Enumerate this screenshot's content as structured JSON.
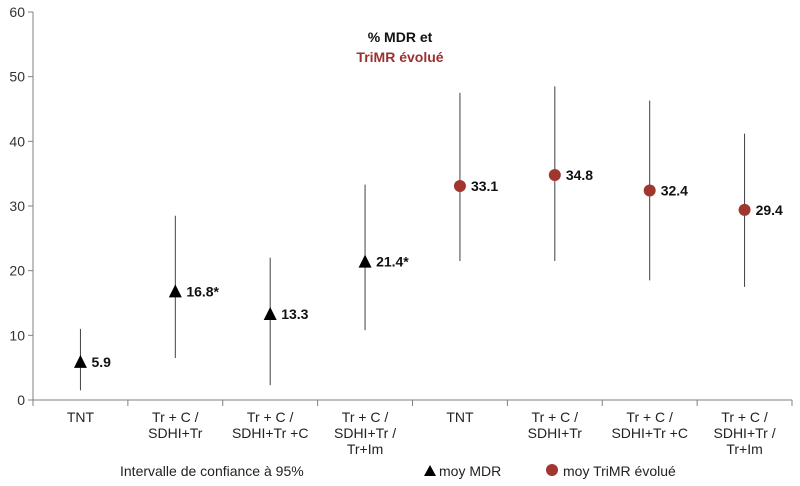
{
  "chart_data": {
    "type": "scatter",
    "title_line1": "% MDR et",
    "title_line2": "TriMR évolué",
    "note": "Intervalle de confiance à 95%",
    "ylim": [
      0,
      60
    ],
    "yticks": [
      0,
      10,
      20,
      30,
      40,
      50,
      60
    ],
    "grid": false,
    "categories": [
      [
        "TNT"
      ],
      [
        "Tr + C /",
        "SDHI+Tr"
      ],
      [
        "Tr + C /",
        "SDHI+Tr +C"
      ],
      [
        "Tr + C /",
        "SDHI+Tr /",
        "Tr+Im"
      ],
      [
        "TNT"
      ],
      [
        "Tr + C /",
        "SDHI+Tr"
      ],
      [
        "Tr + C /",
        "SDHI+Tr +C"
      ],
      [
        "Tr + C /",
        "SDHI+Tr /",
        "Tr+Im"
      ]
    ],
    "series": [
      {
        "name": "moy MDR",
        "marker": "triangle",
        "color": "#000000",
        "points": [
          {
            "cat": 0,
            "value": 5.9,
            "low": 1.5,
            "high": 11.0,
            "label": "5.9"
          },
          {
            "cat": 1,
            "value": 16.8,
            "low": 6.5,
            "high": 28.5,
            "label": "16.8*"
          },
          {
            "cat": 2,
            "value": 13.3,
            "low": 2.3,
            "high": 22.0,
            "label": "13.3"
          },
          {
            "cat": 3,
            "value": 21.4,
            "low": 10.8,
            "high": 33.3,
            "label": "21.4*"
          }
        ]
      },
      {
        "name": "moy TriMR évolué",
        "marker": "circle",
        "color": "#a0362f",
        "points": [
          {
            "cat": 4,
            "value": 33.1,
            "low": 21.5,
            "high": 47.5,
            "label": "33.1"
          },
          {
            "cat": 5,
            "value": 34.8,
            "low": 21.5,
            "high": 48.5,
            "label": "34.8"
          },
          {
            "cat": 6,
            "value": 32.4,
            "low": 18.5,
            "high": 46.3,
            "label": "32.4"
          },
          {
            "cat": 7,
            "value": 29.4,
            "low": 17.5,
            "high": 41.2,
            "label": "29.4"
          }
        ]
      }
    ]
  }
}
